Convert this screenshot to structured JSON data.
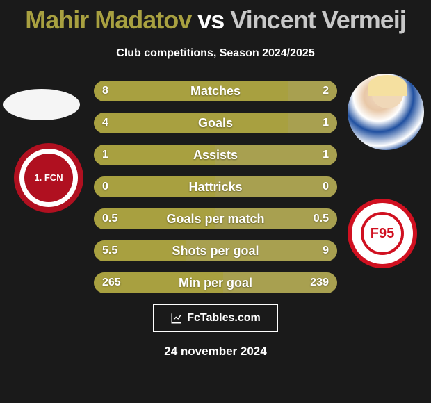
{
  "title": {
    "player1": "Mahir Madatov",
    "vs": "vs",
    "player2": "Vincent Vermeij"
  },
  "subtitle": "Club competitions, Season 2024/2025",
  "logos": {
    "left_text": "1.\nFCN",
    "right_text": "F95"
  },
  "bars": [
    {
      "label": "Matches",
      "left": "8",
      "right": "2",
      "left_pct": 80,
      "right_pct": 20
    },
    {
      "label": "Goals",
      "left": "4",
      "right": "1",
      "left_pct": 80,
      "right_pct": 20
    },
    {
      "label": "Assists",
      "left": "1",
      "right": "1",
      "left_pct": 50,
      "right_pct": 50
    },
    {
      "label": "Hattricks",
      "left": "0",
      "right": "0",
      "left_pct": 50,
      "right_pct": 50
    },
    {
      "label": "Goals per match",
      "left": "0.5",
      "right": "0.5",
      "left_pct": 50,
      "right_pct": 50
    },
    {
      "label": "Shots per goal",
      "left": "5.5",
      "right": "9",
      "left_pct": 38,
      "right_pct": 62
    },
    {
      "label": "Min per goal",
      "left": "265",
      "right": "239",
      "left_pct": 53,
      "right_pct": 47
    }
  ],
  "colors": {
    "player1": "#a8a040",
    "player2": "#c8c8c8",
    "bar_base": "#908838",
    "bar_left": "#a8a040",
    "bar_right": "#a8a050",
    "background": "#1a1a1a"
  },
  "footer_brand": "FcTables.com",
  "footer_date": "24 november 2024"
}
